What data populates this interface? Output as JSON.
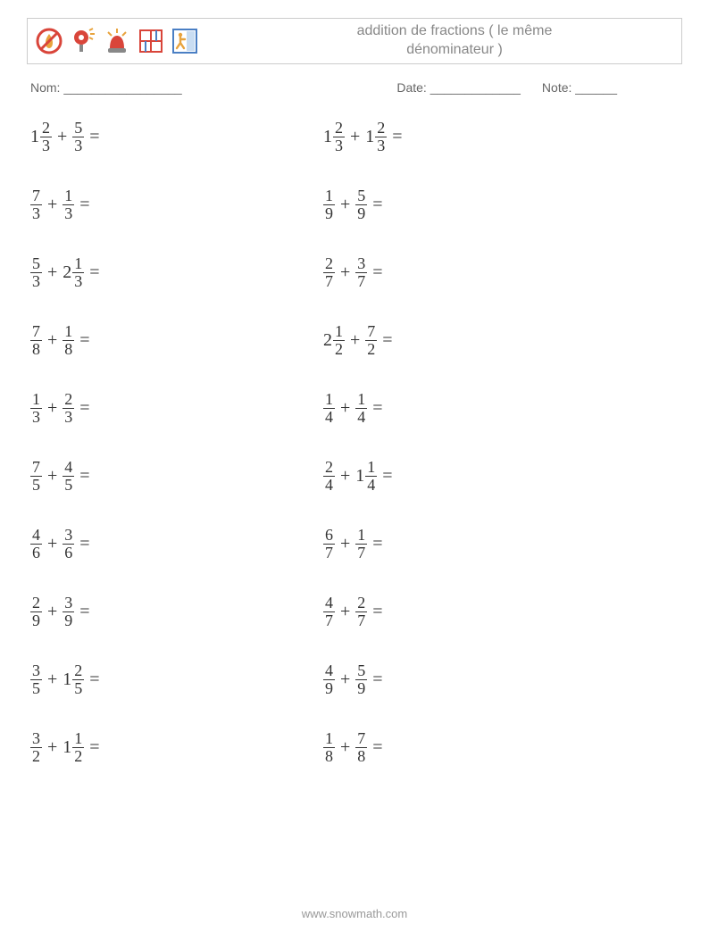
{
  "header": {
    "title_line1": "addition de fractions ( le même",
    "title_line2": "dénominateur )",
    "icons": [
      "no-fire-icon",
      "bell-light-icon",
      "alarm-icon",
      "floor-plan-icon",
      "exit-icon"
    ],
    "icon_colors": {
      "red": "#d9453a",
      "orange": "#e8a33d",
      "blue": "#4a7fc4",
      "gray": "#888888"
    }
  },
  "info": {
    "name_label": "Nom: _________________",
    "date_label": "Date: _____________",
    "note_label": "Note: ______"
  },
  "style": {
    "font_family": "Times New Roman, serif",
    "text_color": "#333333",
    "title_color": "#888888",
    "info_color": "#666666",
    "footer_color": "#999999",
    "border_color": "#cccccc",
    "problem_fontsize": 20,
    "frac_fontsize": 18,
    "row_gap": 28
  },
  "problems": {
    "col1": [
      {
        "a_whole": "1",
        "a_num": "2",
        "a_den": "3",
        "b_whole": "",
        "b_num": "5",
        "b_den": "3"
      },
      {
        "a_whole": "",
        "a_num": "7",
        "a_den": "3",
        "b_whole": "",
        "b_num": "1",
        "b_den": "3"
      },
      {
        "a_whole": "",
        "a_num": "5",
        "a_den": "3",
        "b_whole": "2",
        "b_num": "1",
        "b_den": "3"
      },
      {
        "a_whole": "",
        "a_num": "7",
        "a_den": "8",
        "b_whole": "",
        "b_num": "1",
        "b_den": "8"
      },
      {
        "a_whole": "",
        "a_num": "1",
        "a_den": "3",
        "b_whole": "",
        "b_num": "2",
        "b_den": "3"
      },
      {
        "a_whole": "",
        "a_num": "7",
        "a_den": "5",
        "b_whole": "",
        "b_num": "4",
        "b_den": "5"
      },
      {
        "a_whole": "",
        "a_num": "4",
        "a_den": "6",
        "b_whole": "",
        "b_num": "3",
        "b_den": "6"
      },
      {
        "a_whole": "",
        "a_num": "2",
        "a_den": "9",
        "b_whole": "",
        "b_num": "3",
        "b_den": "9"
      },
      {
        "a_whole": "",
        "a_num": "3",
        "a_den": "5",
        "b_whole": "1",
        "b_num": "2",
        "b_den": "5"
      },
      {
        "a_whole": "",
        "a_num": "3",
        "a_den": "2",
        "b_whole": "1",
        "b_num": "1",
        "b_den": "2"
      }
    ],
    "col2": [
      {
        "a_whole": "1",
        "a_num": "2",
        "a_den": "3",
        "b_whole": "1",
        "b_num": "2",
        "b_den": "3"
      },
      {
        "a_whole": "",
        "a_num": "1",
        "a_den": "9",
        "b_whole": "",
        "b_num": "5",
        "b_den": "9"
      },
      {
        "a_whole": "",
        "a_num": "2",
        "a_den": "7",
        "b_whole": "",
        "b_num": "3",
        "b_den": "7"
      },
      {
        "a_whole": "2",
        "a_num": "1",
        "a_den": "2",
        "b_whole": "",
        "b_num": "7",
        "b_den": "2"
      },
      {
        "a_whole": "",
        "a_num": "1",
        "a_den": "4",
        "b_whole": "",
        "b_num": "1",
        "b_den": "4"
      },
      {
        "a_whole": "",
        "a_num": "2",
        "a_den": "4",
        "b_whole": "1",
        "b_num": "1",
        "b_den": "4"
      },
      {
        "a_whole": "",
        "a_num": "6",
        "a_den": "7",
        "b_whole": "",
        "b_num": "1",
        "b_den": "7"
      },
      {
        "a_whole": "",
        "a_num": "4",
        "a_den": "7",
        "b_whole": "",
        "b_num": "2",
        "b_den": "7"
      },
      {
        "a_whole": "",
        "a_num": "4",
        "a_den": "9",
        "b_whole": "",
        "b_num": "5",
        "b_den": "9"
      },
      {
        "a_whole": "",
        "a_num": "1",
        "a_den": "8",
        "b_whole": "",
        "b_num": "7",
        "b_den": "8"
      }
    ]
  },
  "operator": "+",
  "equals": "=",
  "footer": "www.snowmath.com"
}
